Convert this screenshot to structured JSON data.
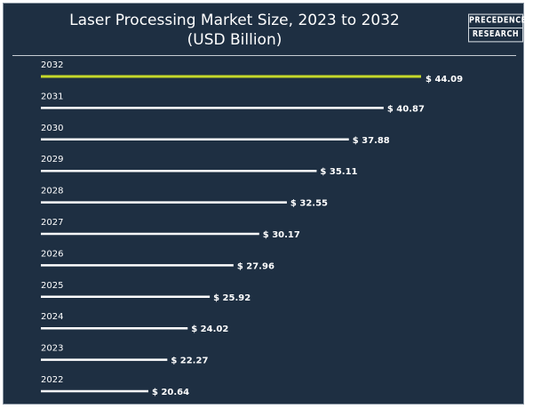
{
  "chart_data": {
    "type": "bar",
    "orientation": "horizontal",
    "title": "Laser Processing Market Size, 2023 to 2032",
    "subtitle": "(USD Billion)",
    "categories": [
      "2032",
      "2031",
      "2030",
      "2029",
      "2028",
      "2027",
      "2026",
      "2025",
      "2024",
      "2023",
      "2022"
    ],
    "values": [
      44.09,
      40.87,
      37.88,
      35.11,
      32.55,
      30.17,
      27.96,
      25.92,
      24.02,
      22.27,
      20.64
    ],
    "value_labels": [
      "$ 44.09",
      "$ 40.87",
      "$ 37.88",
      "$ 35.11",
      "$ 32.55",
      "$ 30.17",
      "$ 27.96",
      "$ 25.92",
      "$ 24.02",
      "$ 22.27",
      "$ 20.64"
    ],
    "highlight_category": "2032",
    "colors": {
      "background": "#1e2f42",
      "bar": "#ffffff",
      "highlight": "#c6d92a"
    },
    "grid": false,
    "legend": "none"
  },
  "logo": {
    "line1": "PRECEDENCE",
    "line2": "RESEARCH"
  }
}
